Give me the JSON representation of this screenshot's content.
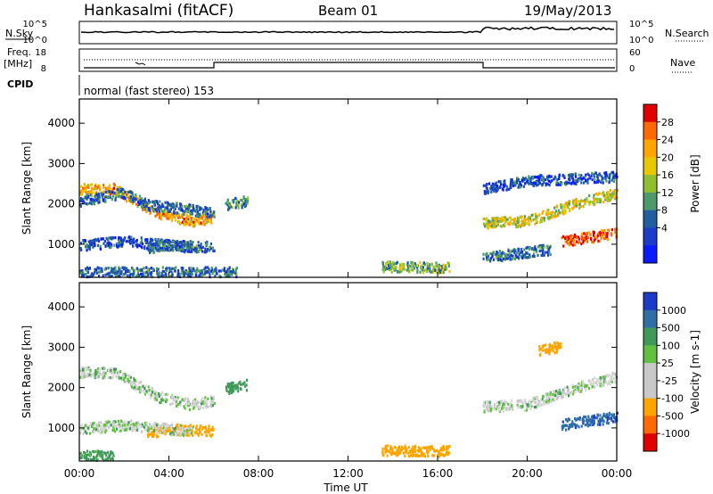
{
  "header": {
    "station": "Hankasalmi (fitACF)",
    "beam": "Beam 01",
    "date": "19/May/2013"
  },
  "strip_panels": {
    "nsky_label": "N.Sky",
    "nsearch_label": "N.Search",
    "nave_label": "Nave",
    "freq_label_1": "Freq.",
    "freq_label_2": "[MHz]",
    "cpid_label": "CPID",
    "cpid_text": "normal (fast stereo) 153",
    "noise_ticks": [
      "10^5",
      "10^0"
    ],
    "noise_ticks_right": [
      "10^5",
      "10^0"
    ],
    "freq_ticks": [
      "18",
      "8"
    ],
    "nave_ticks": [
      "60",
      "0"
    ]
  },
  "axes": {
    "ylabel": "Slant Range [km]",
    "xlabel": "Time UT",
    "yticks": [
      "4000",
      "3000",
      "2000",
      "1000"
    ],
    "xticks": [
      "00:00",
      "04:00",
      "08:00",
      "12:00",
      "16:00",
      "20:00",
      "00:00"
    ]
  },
  "colorbars": {
    "power": {
      "label": "Power [dB]",
      "ticks": [
        "28",
        "24",
        "20",
        "16",
        "12",
        "8",
        "4"
      ],
      "colors": [
        "#e00000",
        "#ff6a00",
        "#ffa500",
        "#e8c800",
        "#8fbf2f",
        "#4a9a6a",
        "#1f5fa0",
        "#1a3cc8",
        "#0a1aff"
      ]
    },
    "velocity": {
      "label": "Velocity [m s-1]",
      "ticks": [
        "1000",
        "500",
        "100",
        "25",
        "-25",
        "-100",
        "-500",
        "-1000"
      ],
      "colors": [
        "#1a3cc8",
        "#2f6fa8",
        "#3f9a5a",
        "#60c040",
        "#c8c8c8",
        "#c8c8c8",
        "#ffa500",
        "#ff6a00",
        "#e00000"
      ]
    }
  },
  "chart_data": [
    {
      "type": "heatmap",
      "name": "power",
      "xlabel": "Time UT",
      "ylabel": "Slant Range [km]",
      "xlim": [
        0,
        24
      ],
      "ylim": [
        180,
        4600
      ],
      "value_label": "Power [dB]",
      "bands": [
        {
          "t": [
            0,
            1.5,
            2.5,
            3.5,
            5,
            6
          ],
          "r": [
            2400,
            2400,
            2100,
            1800,
            1600,
            1700
          ],
          "power": 22
        },
        {
          "t": [
            0,
            2,
            3,
            4,
            6
          ],
          "r": [
            2100,
            2300,
            2000,
            1950,
            1800
          ],
          "power": 10
        },
        {
          "t": [
            0,
            2,
            5
          ],
          "r": [
            1000,
            1100,
            950
          ],
          "power": 8
        },
        {
          "t": [
            3,
            4,
            6
          ],
          "r": [
            900,
            1000,
            950
          ],
          "power": 10
        },
        {
          "t": [
            6.5,
            7.5
          ],
          "r": [
            2000,
            2100
          ],
          "power": 12
        },
        {
          "t": [
            0,
            7
          ],
          "r": [
            330,
            330
          ],
          "power": 10
        },
        {
          "t": [
            13.5,
            16.5
          ],
          "r": [
            470,
            450
          ],
          "power": 14
        },
        {
          "t": [
            18,
            20,
            22,
            24
          ],
          "r": [
            1550,
            1600,
            2000,
            2300
          ],
          "power": 18
        },
        {
          "t": [
            18,
            20,
            24
          ],
          "r": [
            2400,
            2600,
            2700
          ],
          "power": 8
        },
        {
          "t": [
            21.5,
            24
          ],
          "r": [
            1100,
            1300
          ],
          "power": 26
        },
        {
          "t": [
            18,
            21
          ],
          "r": [
            700,
            900
          ],
          "power": 10
        }
      ]
    },
    {
      "type": "heatmap",
      "name": "velocity",
      "xlabel": "Time UT",
      "ylabel": "Slant Range [km]",
      "xlim": [
        0,
        24
      ],
      "ylim": [
        180,
        4600
      ],
      "value_label": "Velocity [m s-1]",
      "bands": [
        {
          "t": [
            0,
            1.5,
            2.5,
            3.5,
            5,
            6
          ],
          "r": [
            2400,
            2400,
            2100,
            1800,
            1600,
            1700
          ],
          "velocity": 0
        },
        {
          "t": [
            3,
            4,
            6
          ],
          "r": [
            900,
            1000,
            950
          ],
          "velocity": -300
        },
        {
          "t": [
            0,
            2,
            5
          ],
          "r": [
            1000,
            1100,
            950
          ],
          "velocity": 0
        },
        {
          "t": [
            0,
            1.5
          ],
          "r": [
            330,
            330
          ],
          "velocity": 120
        },
        {
          "t": [
            6.5,
            7.5
          ],
          "r": [
            2000,
            2100
          ],
          "velocity": 200
        },
        {
          "t": [
            13.5,
            16.5
          ],
          "r": [
            470,
            450
          ],
          "velocity": -300
        },
        {
          "t": [
            18,
            20,
            22,
            24
          ],
          "r": [
            1550,
            1600,
            2000,
            2300
          ],
          "velocity": 0
        },
        {
          "t": [
            21.5,
            24
          ],
          "r": [
            1100,
            1300
          ],
          "velocity": 700
        },
        {
          "t": [
            20.5,
            21.5
          ],
          "r": [
            2950,
            3050
          ],
          "velocity": -300
        }
      ]
    }
  ]
}
